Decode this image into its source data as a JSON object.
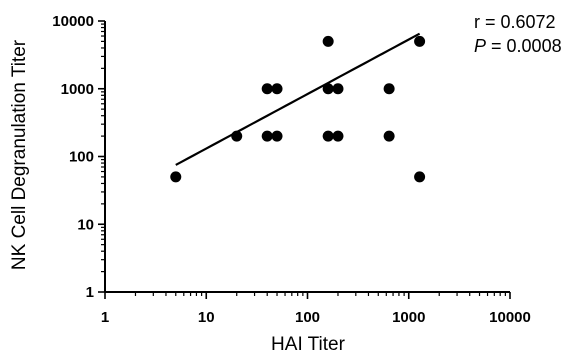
{
  "chart_data": {
    "type": "scatter",
    "xlabel": "HAI Titer",
    "ylabel": "NK  Cell  Degranulation Titer",
    "x_scale": "log",
    "y_scale": "log",
    "xlim": [
      1,
      10000
    ],
    "ylim": [
      1,
      10000
    ],
    "x_ticks": [
      "1",
      "10",
      "100",
      "1000",
      "10000"
    ],
    "y_ticks": [
      "1",
      "10",
      "100",
      "1000",
      "10000"
    ],
    "grid": false,
    "legend": "none",
    "points": [
      {
        "x": 5,
        "y": 50
      },
      {
        "x": 20,
        "y": 200
      },
      {
        "x": 40,
        "y": 200
      },
      {
        "x": 40,
        "y": 1000
      },
      {
        "x": 50,
        "y": 200
      },
      {
        "x": 50,
        "y": 1000
      },
      {
        "x": 160,
        "y": 200
      },
      {
        "x": 160,
        "y": 1000
      },
      {
        "x": 160,
        "y": 5000
      },
      {
        "x": 200,
        "y": 200
      },
      {
        "x": 200,
        "y": 1000
      },
      {
        "x": 640,
        "y": 200
      },
      {
        "x": 640,
        "y": 1000
      },
      {
        "x": 1280,
        "y": 50
      },
      {
        "x": 1280,
        "y": 5000
      }
    ],
    "fit_line": {
      "x": [
        5,
        1280
      ],
      "y": [
        75,
        6500
      ]
    },
    "annotations": {
      "r_text": "r = 0.6072",
      "p_label": "P",
      "p_value_text": " = 0.0008"
    },
    "colors": {
      "marker": "#000000",
      "line": "#000000",
      "axis": "#000000"
    }
  }
}
